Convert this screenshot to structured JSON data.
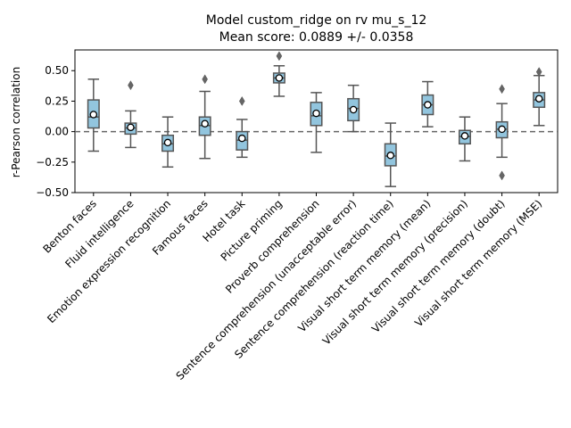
{
  "chart_data": {
    "type": "box",
    "title_line1": "Model custom_ridge on rv mu_s_12",
    "title_line2": "Mean score: 0.0889 +/- 0.0358",
    "xlabel": "",
    "ylabel": "r-Pearson correlation",
    "ylim": [
      -0.5,
      0.67
    ],
    "yticks": [
      -0.5,
      -0.25,
      0.0,
      0.25,
      0.5
    ],
    "ytick_labels": [
      "−0.50",
      "−0.25",
      "0.00",
      "0.25",
      "0.50"
    ],
    "reference_line": 0.0,
    "box_color": "#92c5de",
    "edge_color": "#555555",
    "categories": [
      "Benton faces",
      "Fluid intelligence",
      "Emotion expression recognition",
      "Famous faces",
      "Hotel task",
      "Picture priming",
      "Proverb comprehension",
      "Sentence comprehension (unacceptable error)",
      "Sentence comprehension (reaction time)",
      "Visual short term memory (mean)",
      "Visual short term memory (precision)",
      "Visual short term memory (doubt)",
      "Visual short term memory (MSE)"
    ],
    "boxes": [
      {
        "whisker_low": -0.16,
        "q1": 0.03,
        "median": 0.12,
        "q3": 0.26,
        "whisker_high": 0.43,
        "mean": 0.14,
        "outliers": []
      },
      {
        "whisker_low": -0.13,
        "q1": -0.02,
        "median": 0.03,
        "q3": 0.07,
        "whisker_high": 0.17,
        "mean": 0.035,
        "outliers": [
          0.38
        ]
      },
      {
        "whisker_low": -0.29,
        "q1": -0.16,
        "median": -0.1,
        "q3": -0.03,
        "whisker_high": 0.12,
        "mean": -0.09,
        "outliers": []
      },
      {
        "whisker_low": -0.22,
        "q1": -0.03,
        "median": 0.05,
        "q3": 0.12,
        "whisker_high": 0.33,
        "mean": 0.065,
        "outliers": [
          0.43
        ]
      },
      {
        "whisker_low": -0.21,
        "q1": -0.15,
        "median": -0.07,
        "q3": 0.0,
        "whisker_high": 0.1,
        "mean": -0.055,
        "outliers": [
          0.25
        ]
      },
      {
        "whisker_low": 0.29,
        "q1": 0.4,
        "median": 0.44,
        "q3": 0.48,
        "whisker_high": 0.54,
        "mean": 0.44,
        "outliers": [
          0.62
        ]
      },
      {
        "whisker_low": -0.17,
        "q1": 0.05,
        "median": 0.13,
        "q3": 0.24,
        "whisker_high": 0.32,
        "mean": 0.15,
        "outliers": []
      },
      {
        "whisker_low": 0.0,
        "q1": 0.09,
        "median": 0.19,
        "q3": 0.27,
        "whisker_high": 0.38,
        "mean": 0.18,
        "outliers": []
      },
      {
        "whisker_low": -0.45,
        "q1": -0.28,
        "median": -0.2,
        "q3": -0.1,
        "whisker_high": 0.07,
        "mean": -0.195,
        "outliers": []
      },
      {
        "whisker_low": 0.04,
        "q1": 0.14,
        "median": 0.22,
        "q3": 0.3,
        "whisker_high": 0.41,
        "mean": 0.22,
        "outliers": []
      },
      {
        "whisker_low": -0.24,
        "q1": -0.1,
        "median": -0.04,
        "q3": 0.01,
        "whisker_high": 0.12,
        "mean": -0.035,
        "outliers": []
      },
      {
        "whisker_low": -0.21,
        "q1": -0.05,
        "median": 0.02,
        "q3": 0.08,
        "whisker_high": 0.23,
        "mean": 0.02,
        "outliers": [
          0.35,
          -0.36
        ]
      },
      {
        "whisker_low": 0.05,
        "q1": 0.2,
        "median": 0.26,
        "q3": 0.32,
        "whisker_high": 0.46,
        "mean": 0.27,
        "outliers": [
          0.49
        ]
      }
    ]
  }
}
